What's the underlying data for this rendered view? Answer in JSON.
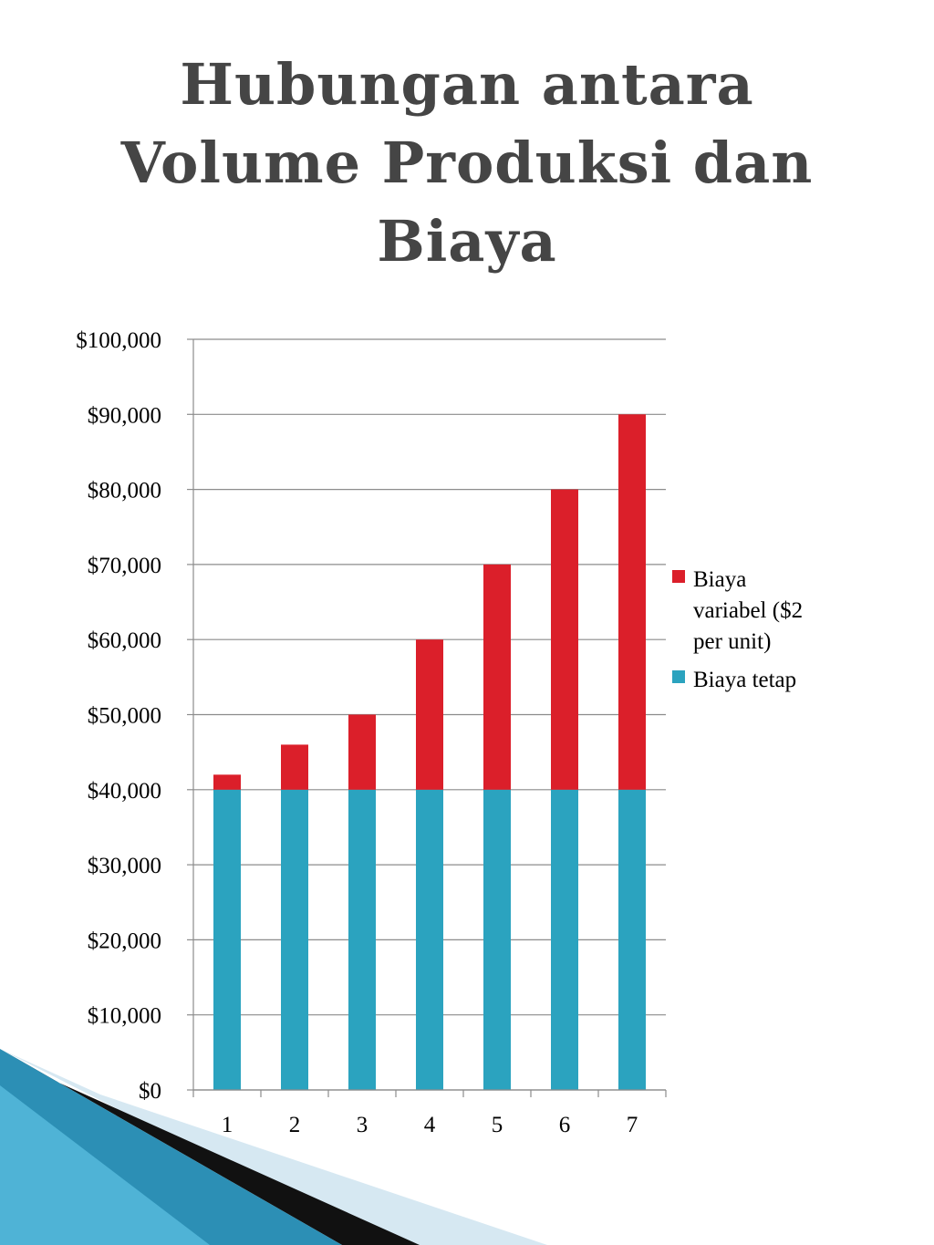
{
  "title": {
    "lines": [
      "Hubungan antara",
      "Volume Produksi dan",
      "Biaya"
    ]
  },
  "chart_data": {
    "type": "bar",
    "stacked": true,
    "categories": [
      "1",
      "2",
      "3",
      "4",
      "5",
      "6",
      "7"
    ],
    "series": [
      {
        "name": "Biaya tetap",
        "color": "#2BA3BF",
        "values": [
          40000,
          40000,
          40000,
          40000,
          40000,
          40000,
          40000
        ]
      },
      {
        "name": "Biaya variabel ($2 per unit)",
        "color": "#DB1F2A",
        "values": [
          2000,
          6000,
          10000,
          20000,
          30000,
          40000,
          50000
        ]
      }
    ],
    "y_ticks": [
      "$0",
      "$10,000",
      "$20,000",
      "$30,000",
      "$40,000",
      "$50,000",
      "$60,000",
      "$70,000",
      "$80,000",
      "$90,000",
      "$100,000"
    ],
    "ylim": [
      0,
      100000
    ],
    "grid": true,
    "legend": {
      "placement": "right",
      "entries": [
        {
          "series": "Biaya variabel ($2 per unit)",
          "lines": [
            "Biaya",
            "variabel ($2",
            "per unit)"
          ],
          "color": "#DB1F2A"
        },
        {
          "series": "Biaya tetap",
          "lines": [
            "Biaya tetap"
          ],
          "color": "#2BA3BF"
        }
      ]
    }
  }
}
